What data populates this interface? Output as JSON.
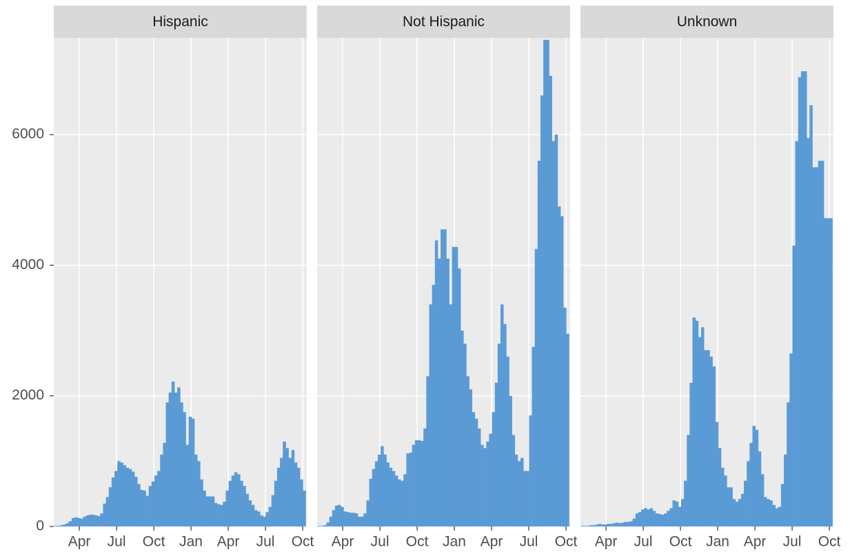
{
  "chart_data": {
    "type": "histogram",
    "color": "#5b9bd5",
    "grid": true,
    "xlim": [
      0.94,
      21.33
    ],
    "xticks": [
      {
        "value": 3,
        "label": "Apr"
      },
      {
        "value": 6,
        "label": "Jul"
      },
      {
        "value": 9,
        "label": "Oct"
      },
      {
        "value": 12,
        "label": "Jan"
      },
      {
        "value": 15,
        "label": "Apr"
      },
      {
        "value": 18,
        "label": "Jul"
      },
      {
        "value": 21,
        "label": "Oct"
      }
    ],
    "ylim": [
      0,
      7480
    ],
    "yticks": [
      0,
      2000,
      4000,
      6000
    ],
    "bins": [
      1.0,
      1.23,
      1.46,
      1.69,
      1.92,
      2.15,
      2.38,
      2.61,
      2.84,
      3.07,
      3.3,
      3.53,
      3.76,
      3.99,
      4.22,
      4.45,
      4.68,
      4.91,
      5.14,
      5.37,
      5.6,
      5.83,
      6.06,
      6.29,
      6.52,
      6.75,
      6.98,
      7.21,
      7.44,
      7.67,
      7.9,
      8.13,
      8.36,
      8.59,
      8.82,
      9.05,
      9.28,
      9.51,
      9.74,
      9.97,
      10.2,
      10.43,
      10.66,
      10.89,
      11.12,
      11.35,
      11.58,
      11.81,
      12.04,
      12.27,
      12.5,
      12.73,
      12.96,
      13.19,
      13.42,
      13.65,
      13.88,
      14.11,
      14.34,
      14.57,
      14.8,
      15.03,
      15.26,
      15.49,
      15.72,
      15.95,
      16.18,
      16.41,
      16.64,
      16.87,
      17.1,
      17.33,
      17.56,
      17.79,
      18.02,
      18.25,
      18.48,
      18.71,
      18.94,
      19.17,
      19.4,
      19.63,
      19.86,
      20.09,
      20.32,
      20.55,
      20.78,
      21.01,
      21.24
    ],
    "series": [
      {
        "name": "Hispanic",
        "values": [
          10,
          10,
          20,
          30,
          50,
          80,
          130,
          140,
          130,
          120,
          150,
          170,
          180,
          180,
          170,
          160,
          200,
          350,
          450,
          600,
          750,
          850,
          1000,
          980,
          940,
          900,
          880,
          840,
          760,
          650,
          560,
          550,
          470,
          620,
          690,
          780,
          850,
          1100,
          1280,
          1900,
          2050,
          2220,
          2050,
          2130,
          1900,
          1750,
          1250,
          1680,
          1650,
          1100,
          1000,
          720,
          550,
          460,
          460,
          460,
          360,
          340,
          330,
          380,
          550,
          700,
          780,
          830,
          800,
          700,
          620,
          500,
          400,
          330,
          250,
          230,
          170,
          150,
          220,
          300,
          480,
          700,
          900,
          1050,
          1300,
          1200,
          1050,
          1170,
          980,
          900,
          720,
          550
        ]
      },
      {
        "name": "Not Hispanic",
        "values": [
          10,
          10,
          20,
          60,
          150,
          250,
          320,
          330,
          300,
          230,
          220,
          210,
          210,
          200,
          150,
          150,
          200,
          400,
          730,
          880,
          1000,
          1100,
          1230,
          1100,
          980,
          900,
          850,
          780,
          720,
          700,
          800,
          1120,
          1130,
          1250,
          1320,
          1320,
          1310,
          1500,
          2300,
          3400,
          3700,
          4380,
          4100,
          4550,
          4550,
          4100,
          3400,
          4280,
          4280,
          3950,
          3000,
          2800,
          2300,
          2100,
          1750,
          1650,
          1500,
          1250,
          1200,
          1300,
          1420,
          1750,
          2200,
          2800,
          3400,
          3100,
          2600,
          2000,
          1400,
          1100,
          1000,
          1050,
          850,
          850,
          1700,
          2750,
          4250,
          5600,
          6600,
          7450,
          7450,
          6900,
          5900,
          6000,
          4900,
          4750,
          3350,
          2950
        ]
      },
      {
        "name": "Unknown",
        "values": [
          10,
          10,
          10,
          20,
          20,
          30,
          40,
          30,
          30,
          40,
          40,
          50,
          60,
          50,
          60,
          70,
          70,
          80,
          120,
          200,
          220,
          260,
          280,
          260,
          280,
          240,
          200,
          190,
          180,
          200,
          240,
          280,
          400,
          380,
          300,
          420,
          700,
          1400,
          2200,
          3200,
          3150,
          2900,
          3050,
          2700,
          2700,
          2600,
          2450,
          1600,
          1200,
          900,
          780,
          600,
          600,
          420,
          380,
          420,
          500,
          700,
          1000,
          1280,
          1540,
          1480,
          1150,
          800,
          450,
          420,
          400,
          330,
          280,
          300,
          650,
          1100,
          1900,
          2650,
          4300,
          5900,
          6880,
          6970,
          6970,
          5950,
          6450,
          5500,
          5500,
          5600,
          5600,
          4720,
          4720,
          4720
        ]
      }
    ]
  }
}
